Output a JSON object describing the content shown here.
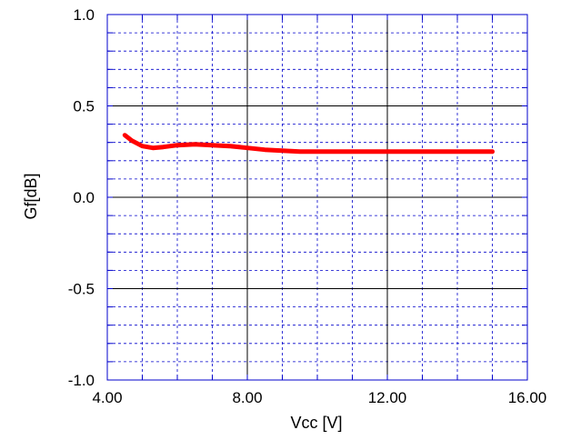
{
  "chart_data": {
    "type": "line",
    "title": "",
    "xlabel": "Vcc [V]",
    "ylabel": "Gf[dB]",
    "xlim": [
      4.0,
      16.0
    ],
    "ylim": [
      -1.0,
      1.0
    ],
    "x_major_ticks": [
      4,
      8,
      12,
      16
    ],
    "x_tick_labels": [
      "4.00",
      "8.00",
      "12.00",
      "16.00"
    ],
    "x_minor_step": 1.0,
    "y_major_ticks": [
      -1.0,
      -0.5,
      0.0,
      0.5,
      1.0
    ],
    "y_tick_labels": [
      "-1.0",
      "-0.5",
      "0.0",
      "0.5",
      "1.0"
    ],
    "y_minor_step": 0.1,
    "grid": true,
    "legend": "none",
    "series": [
      {
        "color": "#ff0000",
        "x": [
          4.5,
          4.7,
          5.0,
          5.3,
          5.6,
          6.0,
          6.5,
          7.0,
          7.5,
          8.0,
          8.5,
          9.0,
          9.5,
          10.0,
          11.0,
          12.0,
          13.0,
          14.0,
          15.0
        ],
        "y": [
          0.34,
          0.31,
          0.28,
          0.27,
          0.275,
          0.285,
          0.29,
          0.285,
          0.28,
          0.27,
          0.26,
          0.255,
          0.25,
          0.25,
          0.25,
          0.25,
          0.25,
          0.25,
          0.25
        ]
      }
    ]
  },
  "colors": {
    "grid_major": "#000000",
    "grid_minor": "#0000cc",
    "frame": "#0000cc",
    "line": "#ff0000"
  }
}
